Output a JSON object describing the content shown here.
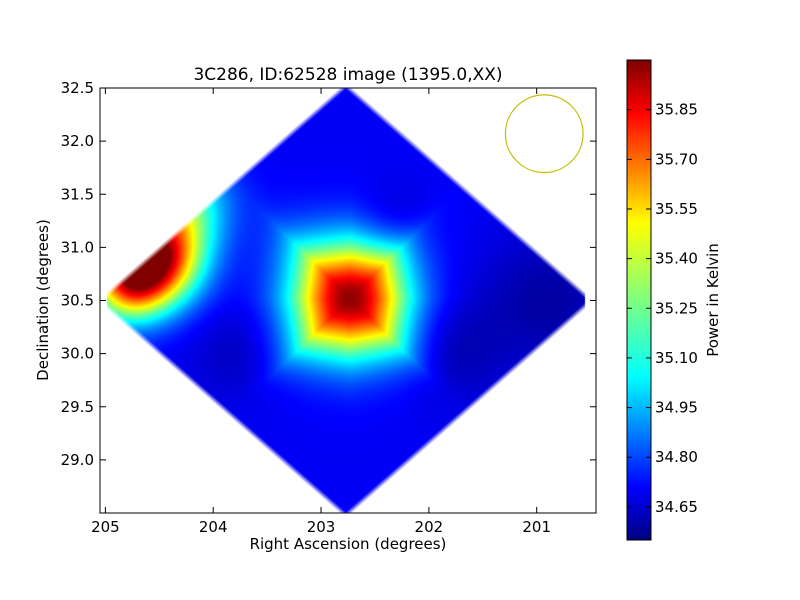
{
  "chart_data": {
    "type": "heatmap",
    "title": "3C286, ID:62528 image (1395.0,XX)",
    "xlabel": "Right Ascension (degrees)",
    "ylabel": "Declination (degrees)",
    "xlim": [
      205.05,
      200.45
    ],
    "ylim": [
      28.5,
      32.5
    ],
    "x_ticks": [
      205,
      204,
      203,
      202,
      201
    ],
    "y_ticks": [
      29.0,
      29.5,
      30.0,
      30.5,
      31.0,
      31.5,
      32.0,
      32.5
    ],
    "colorbar": {
      "label": "Power in Kelvin",
      "range": [
        34.55,
        36.0
      ],
      "ticks": [
        34.65,
        34.8,
        34.95,
        35.1,
        35.25,
        35.4,
        35.55,
        35.7,
        35.85
      ],
      "colormap": "jet"
    },
    "beam_circle": {
      "ra": 200.93,
      "dec": 32.07,
      "radius_ra_deg": 0.36,
      "color": "#bfbf00"
    },
    "map": {
      "center": [
        202.77,
        30.5
      ],
      "half_width_ra": 2.31,
      "half_height_dec": 2.05,
      "background_level": 34.72,
      "features": [
        {
          "ra": 202.73,
          "dec": 30.52,
          "peak": 35.98,
          "width": 0.38,
          "shape": "diamond"
        },
        {
          "ra": 204.55,
          "dec": 30.9,
          "peak": 35.9,
          "width": 0.3,
          "shape": "round"
        },
        {
          "ra": 204.8,
          "dec": 30.65,
          "peak": 35.4,
          "width": 0.25,
          "shape": "round"
        },
        {
          "ra": 204.3,
          "dec": 31.4,
          "peak": 35.2,
          "width": 0.3,
          "shape": "round"
        },
        {
          "ra": 202.3,
          "dec": 31.2,
          "peak": 34.62,
          "width": 0.25,
          "shape": "round"
        },
        {
          "ra": 203.75,
          "dec": 30.0,
          "peak": 34.64,
          "width": 0.35,
          "shape": "round"
        },
        {
          "ra": 201.8,
          "dec": 30.0,
          "peak": 34.62,
          "width": 0.35,
          "shape": "round"
        },
        {
          "ra": 200.9,
          "dec": 30.5,
          "peak": 34.6,
          "width": 0.45,
          "shape": "round"
        }
      ]
    }
  }
}
